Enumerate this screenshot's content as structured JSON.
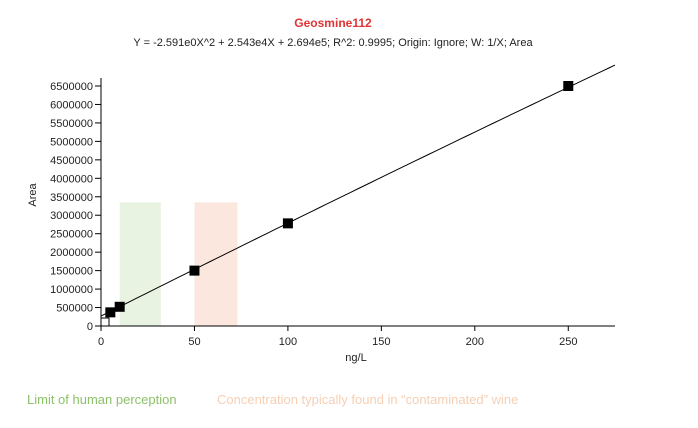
{
  "chart_data": {
    "type": "scatter",
    "title": "Geosmine112",
    "subtitle": "Y = -2.591e0X^2 + 2.543e4X + 2.694e5; R^2: 0.9995; Origin: Ignore; W: 1/X; Area",
    "xlabel": "ng/L",
    "ylabel": "Area",
    "xlim": [
      0,
      275
    ],
    "ylim": [
      0,
      6500000
    ],
    "x_ticks": [
      0,
      50,
      100,
      150,
      200,
      250
    ],
    "y_ticks": [
      0,
      500000,
      1000000,
      1500000,
      2000000,
      2500000,
      3000000,
      3500000,
      4000000,
      4500000,
      5000000,
      5500000,
      6000000,
      6500000
    ],
    "x_tick_labels": [
      "0",
      "50",
      "100",
      "150",
      "200",
      "250"
    ],
    "y_tick_labels": [
      "0",
      "500000",
      "1000000",
      "1500000",
      "2000000",
      "2500000",
      "3000000",
      "3500000",
      "4000000",
      "4500000",
      "5000000",
      "5500000",
      "6000000",
      "6500000"
    ],
    "points": [
      {
        "x": 0,
        "y": 0
      },
      {
        "x": 5,
        "y": 370000
      },
      {
        "x": 10,
        "y": 520000
      },
      {
        "x": 50,
        "y": 1500000
      },
      {
        "x": 100,
        "y": 2780000
      },
      {
        "x": 250,
        "y": 6500000
      }
    ],
    "fit": {
      "a": -2.591,
      "b": 25430,
      "c": 269400,
      "x_range": [
        0,
        275
      ]
    },
    "regions": [
      {
        "label": "Limit of human perception",
        "x_range": [
          10,
          32
        ],
        "y_range": [
          0,
          3350000
        ],
        "color": "#e8f3e2",
        "text_color": "#8cc16a"
      },
      {
        "label": "Concentration typically found in “contaminated” wine",
        "x_range": [
          50,
          73
        ],
        "y_range": [
          0,
          3350000
        ],
        "color": "#fbe7de",
        "text_color": "#f6cfb4"
      }
    ],
    "grid": false,
    "title_color": "#e03434",
    "marker_color": "#000000",
    "line_color": "#000000"
  }
}
